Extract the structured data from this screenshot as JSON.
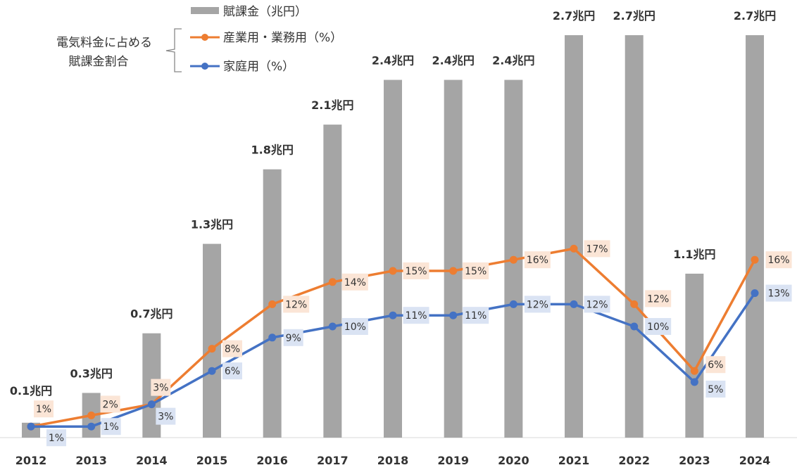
{
  "chart_data": {
    "type": "bar+line",
    "categories": [
      "2012",
      "2013",
      "2014",
      "2015",
      "2016",
      "2017",
      "2018",
      "2019",
      "2020",
      "2021",
      "2022",
      "2023",
      "2024"
    ],
    "bar_series": {
      "name": "賦課金（兆円）",
      "values": [
        0.1,
        0.3,
        0.7,
        1.3,
        1.8,
        2.1,
        2.4,
        2.4,
        2.4,
        2.7,
        2.7,
        1.1,
        2.7
      ],
      "labels": [
        "0.1兆円",
        "0.3兆円",
        "0.7兆円",
        "1.3兆円",
        "1.8兆円",
        "2.1兆円",
        "2.4兆円",
        "2.4兆円",
        "2.4兆円",
        "2.7兆円",
        "2.7兆円",
        "1.1兆円",
        "2.7兆円"
      ],
      "color": "#a5a5a5"
    },
    "series": [
      {
        "name": "産業用・業務用（%）",
        "values": [
          1,
          2,
          3,
          8,
          12,
          14,
          15,
          15,
          16,
          17,
          12,
          6,
          16
        ],
        "color": "#ed7d31",
        "label_bg": "#fbe5d6"
      },
      {
        "name": "家庭用（%）",
        "values": [
          1,
          1,
          3,
          6,
          9,
          10,
          11,
          11,
          12,
          12,
          10,
          5,
          13
        ],
        "color": "#4472c4",
        "label_bg": "#dae3f3"
      }
    ],
    "legend_group_label": [
      "電気料金に占める",
      "賦課金割合"
    ],
    "ylim_bar": [
      0,
      2.7
    ],
    "ylim_pct": [
      0,
      17
    ]
  }
}
